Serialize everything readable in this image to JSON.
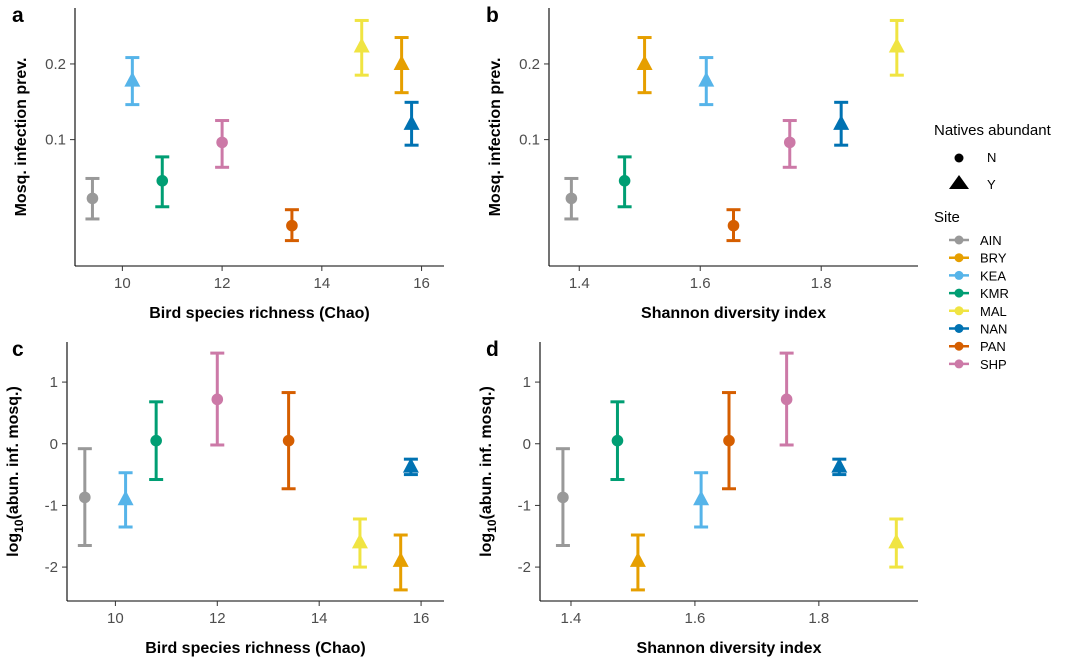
{
  "chart_data": [
    {
      "type": "scatter",
      "panel_label": "a",
      "xlabel": "Bird species richness (Chao)",
      "ylabel": "Mosq. infection prev.",
      "xlim": [
        9.05,
        16.45
      ],
      "ylim": [
        0.0095,
        0.296
      ],
      "y_scale": "sqrt",
      "xticks": [
        10,
        12,
        14,
        16
      ],
      "xtick_labels": [
        "10",
        "12",
        "14",
        "16"
      ],
      "yticks": [
        0.1,
        0.2
      ],
      "ytick_labels": [
        "0.1",
        "0.2"
      ],
      "points": [
        {
          "site": "AIN",
          "native": "N",
          "x": 9.4,
          "y": 0.046,
          "lo": 0.032,
          "hi": 0.062
        },
        {
          "site": "KEA",
          "native": "Y",
          "x": 10.2,
          "y": 0.175,
          "lo": 0.142,
          "hi": 0.21
        },
        {
          "site": "KMR",
          "native": "N",
          "x": 10.8,
          "y": 0.06,
          "lo": 0.04,
          "hi": 0.082
        },
        {
          "site": "SHP",
          "native": "N",
          "x": 12.0,
          "y": 0.097,
          "lo": 0.072,
          "hi": 0.122
        },
        {
          "site": "PAN",
          "native": "N",
          "x": 13.4,
          "y": 0.028,
          "lo": 0.02,
          "hi": 0.038
        },
        {
          "site": "MAL",
          "native": "Y",
          "x": 14.8,
          "y": 0.228,
          "lo": 0.183,
          "hi": 0.273
        },
        {
          "site": "BRY",
          "native": "Y",
          "x": 15.6,
          "y": 0.2,
          "lo": 0.158,
          "hi": 0.243
        },
        {
          "site": "NAN",
          "native": "Y",
          "x": 15.8,
          "y": 0.118,
          "lo": 0.094,
          "hi": 0.145
        }
      ]
    },
    {
      "type": "scatter",
      "panel_label": "b",
      "xlabel": "Shannon diversity index",
      "ylabel": "Mosq. infection prev.",
      "xlim": [
        1.35,
        1.96
      ],
      "ylim": [
        0.0095,
        0.296
      ],
      "y_scale": "sqrt",
      "xticks": [
        1.4,
        1.6,
        1.8
      ],
      "xtick_labels": [
        "1.4",
        "1.6",
        "1.8"
      ],
      "yticks": [
        0.1,
        0.2
      ],
      "ytick_labels": [
        "0.1",
        "0.2"
      ],
      "points": [
        {
          "site": "AIN",
          "native": "N",
          "x": 1.387,
          "y": 0.046,
          "lo": 0.032,
          "hi": 0.062
        },
        {
          "site": "KMR",
          "native": "N",
          "x": 1.475,
          "y": 0.06,
          "lo": 0.04,
          "hi": 0.082
        },
        {
          "site": "BRY",
          "native": "Y",
          "x": 1.508,
          "y": 0.2,
          "lo": 0.158,
          "hi": 0.243
        },
        {
          "site": "KEA",
          "native": "Y",
          "x": 1.61,
          "y": 0.175,
          "lo": 0.142,
          "hi": 0.21
        },
        {
          "site": "PAN",
          "native": "N",
          "x": 1.655,
          "y": 0.028,
          "lo": 0.02,
          "hi": 0.038
        },
        {
          "site": "SHP",
          "native": "N",
          "x": 1.748,
          "y": 0.097,
          "lo": 0.072,
          "hi": 0.122
        },
        {
          "site": "NAN",
          "native": "Y",
          "x": 1.833,
          "y": 0.118,
          "lo": 0.094,
          "hi": 0.145
        },
        {
          "site": "MAL",
          "native": "Y",
          "x": 1.925,
          "y": 0.228,
          "lo": 0.183,
          "hi": 0.273
        }
      ]
    },
    {
      "type": "scatter",
      "panel_label": "c",
      "xlabel": "Bird species richness (Chao)",
      "ylabel": "log10(abun. inf. mosq.)",
      "ylabel_parts": [
        "log",
        "10",
        "(abun. inf. mosq.)"
      ],
      "xlim": [
        9.05,
        16.45
      ],
      "ylim": [
        -2.55,
        1.65
      ],
      "y_scale": "linear",
      "xticks": [
        10,
        12,
        14,
        16
      ],
      "xtick_labels": [
        "10",
        "12",
        "14",
        "16"
      ],
      "yticks": [
        -2,
        -1,
        0,
        1
      ],
      "ytick_labels": [
        "-2",
        "-1",
        "0",
        "1"
      ],
      "points": [
        {
          "site": "AIN",
          "native": "N",
          "x": 9.4,
          "y": -0.87,
          "lo": -1.65,
          "hi": -0.08
        },
        {
          "site": "KEA",
          "native": "Y",
          "x": 10.2,
          "y": -0.9,
          "lo": -1.35,
          "hi": -0.47
        },
        {
          "site": "KMR",
          "native": "N",
          "x": 10.8,
          "y": 0.05,
          "lo": -0.58,
          "hi": 0.68
        },
        {
          "site": "SHP",
          "native": "N",
          "x": 12.0,
          "y": 0.72,
          "lo": -0.02,
          "hi": 1.47
        },
        {
          "site": "PAN",
          "native": "N",
          "x": 13.4,
          "y": 0.05,
          "lo": -0.73,
          "hi": 0.83
        },
        {
          "site": "MAL",
          "native": "Y",
          "x": 14.8,
          "y": -1.6,
          "lo": -2.0,
          "hi": -1.22
        },
        {
          "site": "BRY",
          "native": "Y",
          "x": 15.6,
          "y": -1.9,
          "lo": -2.37,
          "hi": -1.48
        },
        {
          "site": "NAN",
          "native": "Y",
          "x": 15.8,
          "y": -0.37,
          "lo": -0.5,
          "hi": -0.25
        }
      ]
    },
    {
      "type": "scatter",
      "panel_label": "d",
      "xlabel": "Shannon diversity index",
      "ylabel": "log10(abun. inf. mosq.)",
      "ylabel_parts": [
        "log",
        "10",
        "(abun. inf. mosq.)"
      ],
      "xlim": [
        1.35,
        1.96
      ],
      "ylim": [
        -2.55,
        1.65
      ],
      "y_scale": "linear",
      "xticks": [
        1.4,
        1.6,
        1.8
      ],
      "xtick_labels": [
        "1.4",
        "1.6",
        "1.8"
      ],
      "yticks": [
        -2,
        -1,
        0,
        1
      ],
      "ytick_labels": [
        "-2",
        "-1",
        "0",
        "1"
      ],
      "points": [
        {
          "site": "AIN",
          "native": "N",
          "x": 1.387,
          "y": -0.87,
          "lo": -1.65,
          "hi": -0.08
        },
        {
          "site": "KMR",
          "native": "N",
          "x": 1.475,
          "y": 0.05,
          "lo": -0.58,
          "hi": 0.68
        },
        {
          "site": "BRY",
          "native": "Y",
          "x": 1.508,
          "y": -1.9,
          "lo": -2.37,
          "hi": -1.48
        },
        {
          "site": "KEA",
          "native": "Y",
          "x": 1.61,
          "y": -0.9,
          "lo": -1.35,
          "hi": -0.47
        },
        {
          "site": "PAN",
          "native": "N",
          "x": 1.655,
          "y": 0.05,
          "lo": -0.73,
          "hi": 0.83
        },
        {
          "site": "SHP",
          "native": "N",
          "x": 1.748,
          "y": 0.72,
          "lo": -0.02,
          "hi": 1.47
        },
        {
          "site": "NAN",
          "native": "Y",
          "x": 1.833,
          "y": -0.37,
          "lo": -0.5,
          "hi": -0.25
        },
        {
          "site": "MAL",
          "native": "Y",
          "x": 1.925,
          "y": -1.6,
          "lo": -2.0,
          "hi": -1.22
        }
      ]
    }
  ],
  "legend": {
    "shape_title": "Natives abundant",
    "shapes": [
      {
        "label": "N",
        "shape": "circle"
      },
      {
        "label": "Y",
        "shape": "triangle"
      }
    ],
    "color_title": "Site",
    "sites": [
      {
        "label": "AIN",
        "color": "#999999"
      },
      {
        "label": "BRY",
        "color": "#E69F00"
      },
      {
        "label": "KEA",
        "color": "#56B4E9"
      },
      {
        "label": "KMR",
        "color": "#009E73"
      },
      {
        "label": "MAL",
        "color": "#F0E442"
      },
      {
        "label": "NAN",
        "color": "#0072B2"
      },
      {
        "label": "PAN",
        "color": "#D55E00"
      },
      {
        "label": "SHP",
        "color": "#CC79A7"
      }
    ]
  }
}
